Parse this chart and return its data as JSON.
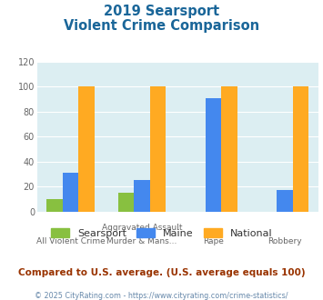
{
  "title_line1": "2019 Searsport",
  "title_line2": "Violent Crime Comparison",
  "cat_labels_top": [
    "",
    "Aggravated Assault",
    "",
    ""
  ],
  "cat_labels_bot": [
    "All Violent Crime",
    "Murder & Mans...",
    "Rape",
    "Robbery"
  ],
  "searsport": [
    10,
    15,
    0,
    0
  ],
  "maine": [
    31,
    25,
    91,
    17
  ],
  "national": [
    100,
    100,
    100,
    100
  ],
  "color_searsport": "#88c040",
  "color_maine": "#4488ee",
  "color_national": "#ffaa22",
  "ylim": [
    0,
    120
  ],
  "yticks": [
    0,
    20,
    40,
    60,
    80,
    100,
    120
  ],
  "plot_bg": "#dceef2",
  "footer_text": "Compared to U.S. average. (U.S. average equals 100)",
  "copyright_text": "© 2025 CityRating.com - https://www.cityrating.com/crime-statistics/",
  "title_color": "#1a6699",
  "footer_color": "#993300",
  "copyright_color": "#6688aa"
}
